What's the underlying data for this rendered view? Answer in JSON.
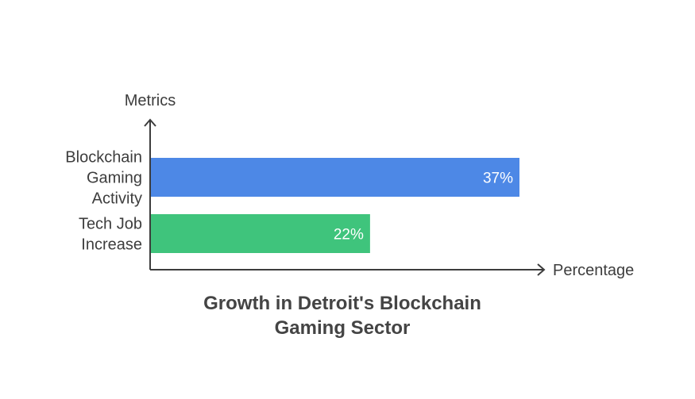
{
  "chart_data": {
    "type": "bar",
    "orientation": "horizontal",
    "title": "Growth in Detroit's Blockchain Gaming Sector",
    "title_lines": [
      "Growth in Detroit's Blockchain",
      "Gaming Sector"
    ],
    "xlabel": "Percentage",
    "ylabel": "Metrics",
    "categories": [
      "Blockchain Gaming Activity",
      "Tech Job Increase"
    ],
    "category_lines": [
      [
        "Blockchain",
        "Gaming",
        "Activity"
      ],
      [
        "Tech Job",
        "Increase"
      ]
    ],
    "values": [
      37,
      22
    ],
    "value_labels": [
      "37%",
      "22%"
    ],
    "colors": [
      "#4d88e6",
      "#3fc47c"
    ],
    "xlim": [
      0,
      40
    ],
    "grid": false,
    "legend": "none"
  },
  "colors": {
    "axis": "#3d3d3d",
    "text": "#3d3d3d",
    "title": "#444444",
    "background": "#ffffff"
  }
}
